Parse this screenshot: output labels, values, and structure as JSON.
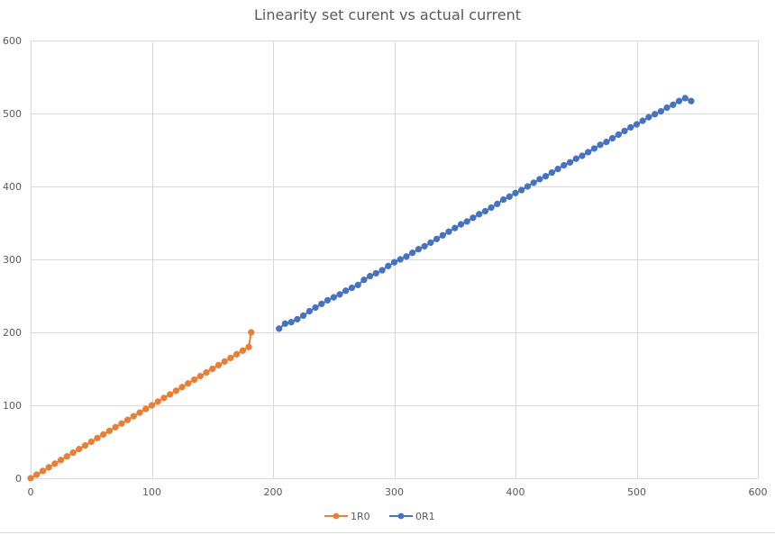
{
  "chart_data": {
    "type": "scatter",
    "title": "Linearity set curent vs actual current",
    "xlabel": "",
    "ylabel": "",
    "xlim": [
      0,
      600
    ],
    "ylim": [
      0,
      600
    ],
    "x_ticks": [
      0,
      100,
      200,
      300,
      400,
      500,
      600
    ],
    "y_ticks": [
      0,
      100,
      200,
      300,
      400,
      500,
      600
    ],
    "grid": true,
    "legend_position": "bottom",
    "series": [
      {
        "name": "1R0",
        "color": "#ED7D31",
        "marker": "circle",
        "line": true,
        "points": [
          [
            0,
            0
          ],
          [
            5,
            5
          ],
          [
            10,
            10
          ],
          [
            15,
            15
          ],
          [
            20,
            20
          ],
          [
            25,
            25
          ],
          [
            30,
            30
          ],
          [
            35,
            35
          ],
          [
            40,
            40
          ],
          [
            45,
            45
          ],
          [
            50,
            50
          ],
          [
            55,
            55
          ],
          [
            60,
            60
          ],
          [
            65,
            65
          ],
          [
            70,
            70
          ],
          [
            75,
            75
          ],
          [
            80,
            80
          ],
          [
            85,
            85
          ],
          [
            90,
            90
          ],
          [
            95,
            95
          ],
          [
            100,
            100
          ],
          [
            105,
            105
          ],
          [
            110,
            110
          ],
          [
            115,
            115
          ],
          [
            120,
            120
          ],
          [
            125,
            125
          ],
          [
            130,
            130
          ],
          [
            135,
            135
          ],
          [
            140,
            140
          ],
          [
            145,
            145
          ],
          [
            150,
            150
          ],
          [
            155,
            155
          ],
          [
            160,
            160
          ],
          [
            165,
            165
          ],
          [
            170,
            170
          ],
          [
            175,
            175
          ],
          [
            180,
            180
          ],
          [
            182,
            200
          ]
        ]
      },
      {
        "name": "0R1",
        "color": "#4472C4",
        "marker": "circle",
        "line": true,
        "points": [
          [
            205,
            205
          ],
          [
            210,
            212
          ],
          [
            215,
            214
          ],
          [
            220,
            218
          ],
          [
            225,
            223
          ],
          [
            230,
            229
          ],
          [
            235,
            234
          ],
          [
            240,
            239
          ],
          [
            245,
            244
          ],
          [
            250,
            248
          ],
          [
            255,
            252
          ],
          [
            260,
            257
          ],
          [
            265,
            261
          ],
          [
            270,
            265
          ],
          [
            275,
            272
          ],
          [
            280,
            277
          ],
          [
            285,
            281
          ],
          [
            290,
            285
          ],
          [
            295,
            291
          ],
          [
            300,
            296
          ],
          [
            305,
            300
          ],
          [
            310,
            304
          ],
          [
            315,
            309
          ],
          [
            320,
            314
          ],
          [
            325,
            318
          ],
          [
            330,
            323
          ],
          [
            335,
            328
          ],
          [
            340,
            333
          ],
          [
            345,
            338
          ],
          [
            350,
            343
          ],
          [
            355,
            348
          ],
          [
            360,
            352
          ],
          [
            365,
            357
          ],
          [
            370,
            362
          ],
          [
            375,
            366
          ],
          [
            380,
            371
          ],
          [
            385,
            376
          ],
          [
            390,
            382
          ],
          [
            395,
            386
          ],
          [
            400,
            391
          ],
          [
            405,
            395
          ],
          [
            410,
            400
          ],
          [
            415,
            405
          ],
          [
            420,
            410
          ],
          [
            425,
            414
          ],
          [
            430,
            419
          ],
          [
            435,
            424
          ],
          [
            440,
            429
          ],
          [
            445,
            433
          ],
          [
            450,
            438
          ],
          [
            455,
            442
          ],
          [
            460,
            447
          ],
          [
            465,
            452
          ],
          [
            470,
            457
          ],
          [
            475,
            461
          ],
          [
            480,
            466
          ],
          [
            485,
            471
          ],
          [
            490,
            476
          ],
          [
            495,
            481
          ],
          [
            500,
            485
          ],
          [
            505,
            490
          ],
          [
            510,
            495
          ],
          [
            515,
            499
          ],
          [
            520,
            503
          ],
          [
            525,
            508
          ],
          [
            530,
            512
          ],
          [
            535,
            517
          ],
          [
            540,
            521
          ],
          [
            545,
            517
          ]
        ]
      }
    ]
  }
}
